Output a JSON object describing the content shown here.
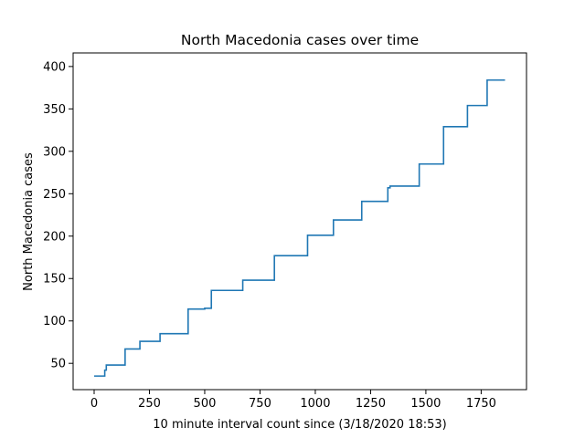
{
  "chart_data": {
    "type": "line",
    "title": "North Macedonia cases over time",
    "xlabel": "10 minute interval count since (3/18/2020 18:53)",
    "ylabel": "North Macedonia cases",
    "xlim": [
      -95,
      1955
    ],
    "ylim": [
      19,
      416
    ],
    "x_ticks": [
      0,
      250,
      500,
      750,
      1000,
      1250,
      1500,
      1750
    ],
    "y_ticks": [
      50,
      100,
      150,
      200,
      250,
      300,
      350,
      400
    ],
    "grid": false,
    "line_style": "steps-post",
    "series": [
      {
        "color": "#1f77b4",
        "points": [
          [
            0,
            35
          ],
          [
            48,
            35
          ],
          [
            48,
            42
          ],
          [
            55,
            42
          ],
          [
            55,
            48
          ],
          [
            140,
            48
          ],
          [
            140,
            67
          ],
          [
            207,
            67
          ],
          [
            207,
            76
          ],
          [
            298,
            76
          ],
          [
            298,
            85
          ],
          [
            425,
            85
          ],
          [
            425,
            114
          ],
          [
            500,
            114
          ],
          [
            500,
            115
          ],
          [
            530,
            115
          ],
          [
            530,
            136
          ],
          [
            672,
            136
          ],
          [
            672,
            148
          ],
          [
            815,
            148
          ],
          [
            815,
            177
          ],
          [
            965,
            177
          ],
          [
            965,
            201
          ],
          [
            1082,
            201
          ],
          [
            1082,
            219
          ],
          [
            1210,
            219
          ],
          [
            1210,
            241
          ],
          [
            1328,
            241
          ],
          [
            1328,
            257
          ],
          [
            1338,
            257
          ],
          [
            1338,
            259
          ],
          [
            1470,
            259
          ],
          [
            1470,
            285
          ],
          [
            1580,
            285
          ],
          [
            1580,
            329
          ],
          [
            1688,
            329
          ],
          [
            1688,
            354
          ],
          [
            1777,
            354
          ],
          [
            1777,
            384
          ],
          [
            1858,
            384
          ]
        ]
      }
    ]
  }
}
